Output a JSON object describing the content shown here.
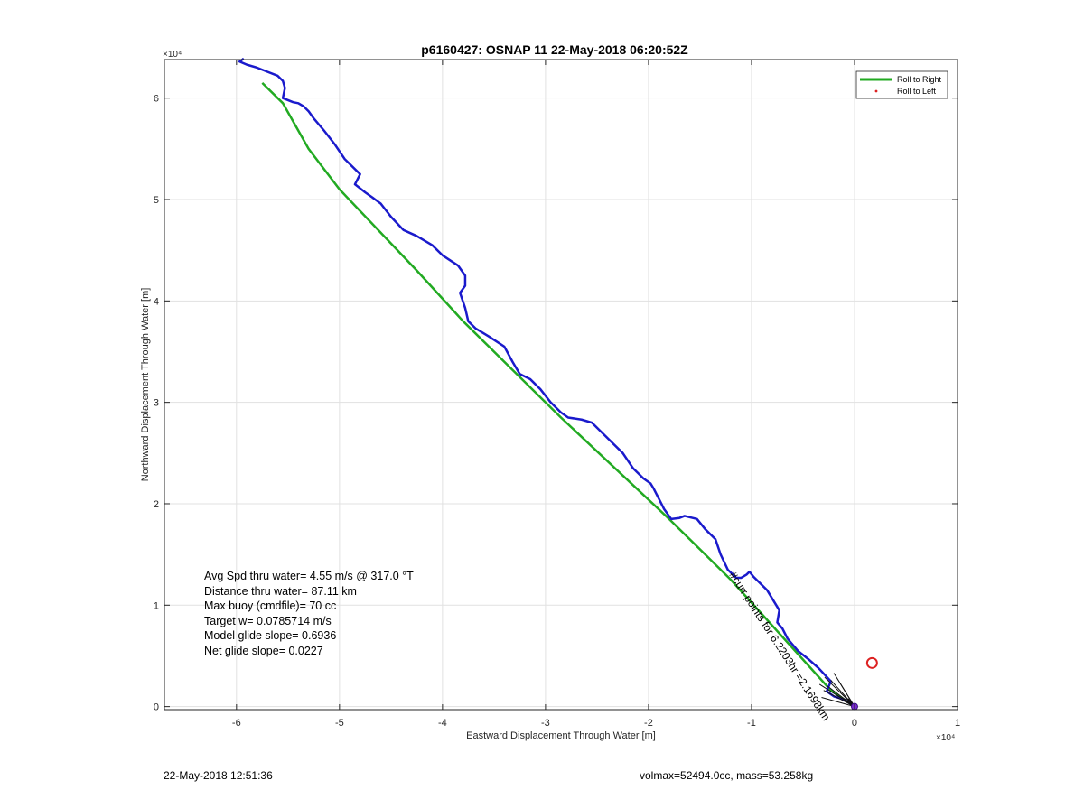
{
  "chart_data": {
    "type": "line",
    "title": "p6160427: OSNAP 11 22-May-2018 06:20:52Z",
    "xlabel": "Eastward Displacement Through Water [m]",
    "ylabel": "Northward Displacement Through Water [m]",
    "x_exponent_label": "×10⁴",
    "y_exponent_label": "×10⁴",
    "xlim": [
      -67000,
      10000
    ],
    "ylim": [
      -300,
      63800
    ],
    "xticks": [
      -60000,
      -50000,
      -40000,
      -30000,
      -20000,
      -10000,
      0,
      10000
    ],
    "xtick_labels": [
      "-6",
      "-5",
      "-4",
      "-3",
      "-2",
      "-1",
      "0",
      "1"
    ],
    "yticks": [
      0,
      10000,
      20000,
      30000,
      40000,
      50000,
      60000
    ],
    "ytick_labels": [
      "0",
      "1",
      "2",
      "3",
      "4",
      "5",
      "6"
    ],
    "grid": true,
    "legend_position": "top-right",
    "series": [
      {
        "name": "Roll to Right",
        "color": "#22aa22",
        "x": [
          0,
          -2300,
          -12000,
          -18000,
          -28500,
          -33000,
          -38000,
          -42500,
          -50000,
          -53000,
          -55500,
          -57500
        ],
        "y": [
          0,
          1600,
          12500,
          18500,
          28500,
          33000,
          38000,
          43000,
          51000,
          55000,
          59500,
          61500
        ]
      },
      {
        "name": "Roll to Left",
        "color": "#dd2222",
        "x": [
          1700
        ],
        "y": [
          4300
        ]
      },
      {
        "color": "#1a1acc",
        "x": [
          0,
          -300,
          -1000,
          -2000,
          -2700,
          -2300,
          -3500,
          -4500,
          -5500,
          -6500,
          -7000,
          -7500,
          -7300,
          -8500,
          -9800,
          -10200,
          -10500,
          -11000,
          -11500,
          -12300,
          -13000,
          -13500,
          -14500,
          -15300,
          -16500,
          -17000,
          -17800,
          -18500,
          -19000,
          -19500,
          -19800,
          -20500,
          -21500,
          -22500,
          -24000,
          -25500,
          -26500,
          -27800,
          -28500,
          -29500,
          -30500,
          -31500,
          -32500,
          -33200,
          -34000,
          -35500,
          -36800,
          -37500,
          -37800,
          -38300,
          -37800,
          -37800,
          -38500,
          -40000,
          -41000,
          -42500,
          -43800,
          -45000,
          -46000,
          -46800,
          -47500,
          -48500,
          -48000,
          -49500,
          -50500,
          -51500,
          -52500,
          -53000,
          -53500,
          -54000,
          -54500,
          -55500,
          -55300,
          -55500,
          -56000,
          -57000,
          -58000,
          -59000,
          -59700,
          -59300
        ],
        "y": [
          0,
          200,
          700,
          1000,
          1500,
          2500,
          3800,
          4700,
          5500,
          6700,
          7700,
          8300,
          9500,
          11500,
          12800,
          13300,
          13000,
          12700,
          12700,
          13500,
          15000,
          16500,
          17500,
          18500,
          18800,
          18600,
          18500,
          19500,
          20500,
          21500,
          22000,
          22500,
          23500,
          25000,
          26500,
          28000,
          28300,
          28500,
          29000,
          30000,
          31300,
          32300,
          32800,
          34000,
          35500,
          36500,
          37300,
          38000,
          39300,
          40800,
          41500,
          42500,
          43500,
          44500,
          45500,
          46400,
          47000,
          48300,
          49600,
          50200,
          50700,
          51500,
          52500,
          54000,
          55500,
          56800,
          58000,
          58700,
          59200,
          59500,
          59600,
          60000,
          61000,
          61700,
          62200,
          62600,
          63000,
          63300,
          63600,
          63900
        ]
      }
    ],
    "annotations": [
      {
        "text": "Avg Spd thru water=  4.55 m/s @ 317.0 °T"
      },
      {
        "text": "Distance thru water= 87.11 km"
      },
      {
        "text": "Max buoy (cmdfile)= 70 cc"
      },
      {
        "text": "Target w= 0.0785714 m/s"
      },
      {
        "text": "Model glide slope= 0.6936"
      },
      {
        "text": "Net glide slope= 0.0227"
      },
      {
        "text": "#curr points for 6.2203hr =2.1698km",
        "x": -11500,
        "y": 13000,
        "rotation_deg": 57
      }
    ]
  },
  "footer": {
    "left": "22-May-2018 12:51:36",
    "right": "volmax=52494.0cc, mass=53.258kg"
  }
}
